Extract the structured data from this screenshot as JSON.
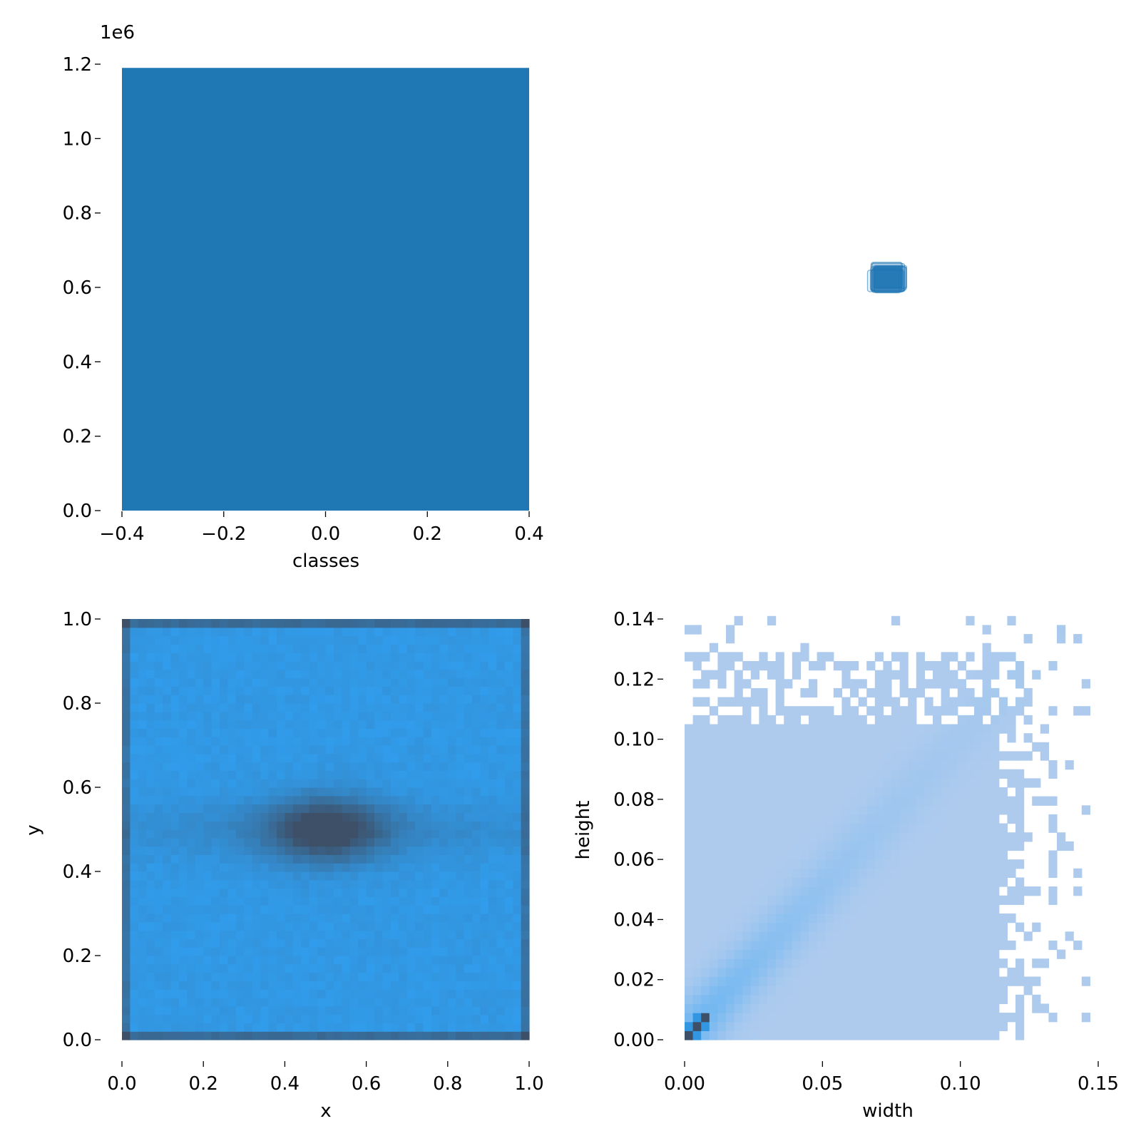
{
  "chart_data": [
    {
      "panel": "classes-histogram",
      "type": "bar",
      "xlabel": "classes",
      "ylabel": "",
      "xlim": [
        -0.4,
        0.4
      ],
      "ylim": [
        0,
        1200000
      ],
      "offset_text": "1e6",
      "x_ticks": [
        "−0.4",
        "−0.2",
        "0.0",
        "0.2",
        "0.4"
      ],
      "y_ticks": [
        "0.0",
        "0.2",
        "0.4",
        "0.6",
        "0.8",
        "1.0",
        "1.2"
      ],
      "categories": [
        "0"
      ],
      "values": [
        1190000
      ],
      "color": "#1f77b4"
    },
    {
      "panel": "label-boxes",
      "type": "other",
      "description_color": "#1f77b4"
    },
    {
      "panel": "xy-density",
      "type": "heatmap",
      "xlabel": "x",
      "ylabel": "y",
      "xlim": [
        0,
        1
      ],
      "ylim": [
        0,
        1
      ],
      "x_ticks": [
        "0.0",
        "0.2",
        "0.4",
        "0.6",
        "0.8",
        "1.0"
      ],
      "y_ticks": [
        "0.0",
        "0.2",
        "0.4",
        "0.6",
        "0.8",
        "1.0"
      ],
      "bins": 50,
      "center_dense_region": {
        "x": 0.5,
        "y": 0.5
      },
      "low_color": "#30a2f5",
      "high_color": "#3d5068"
    },
    {
      "panel": "width-height-density",
      "type": "heatmap",
      "xlabel": "width",
      "ylabel": "height",
      "xlim": [
        0,
        0.15
      ],
      "ylim": [
        0,
        0.14
      ],
      "x_ticks": [
        "0.00",
        "0.05",
        "0.10",
        "0.15"
      ],
      "y_ticks": [
        "0.00",
        "0.02",
        "0.04",
        "0.06",
        "0.08",
        "0.10",
        "0.12",
        "0.14"
      ],
      "bin_width": 0.003,
      "filled_region": {
        "width_max": 0.112,
        "height_max": 0.103
      },
      "base_color": "#aecbee",
      "peak_color": "#3d5068",
      "peak": {
        "width": 0.006,
        "height": 0.006
      }
    }
  ]
}
